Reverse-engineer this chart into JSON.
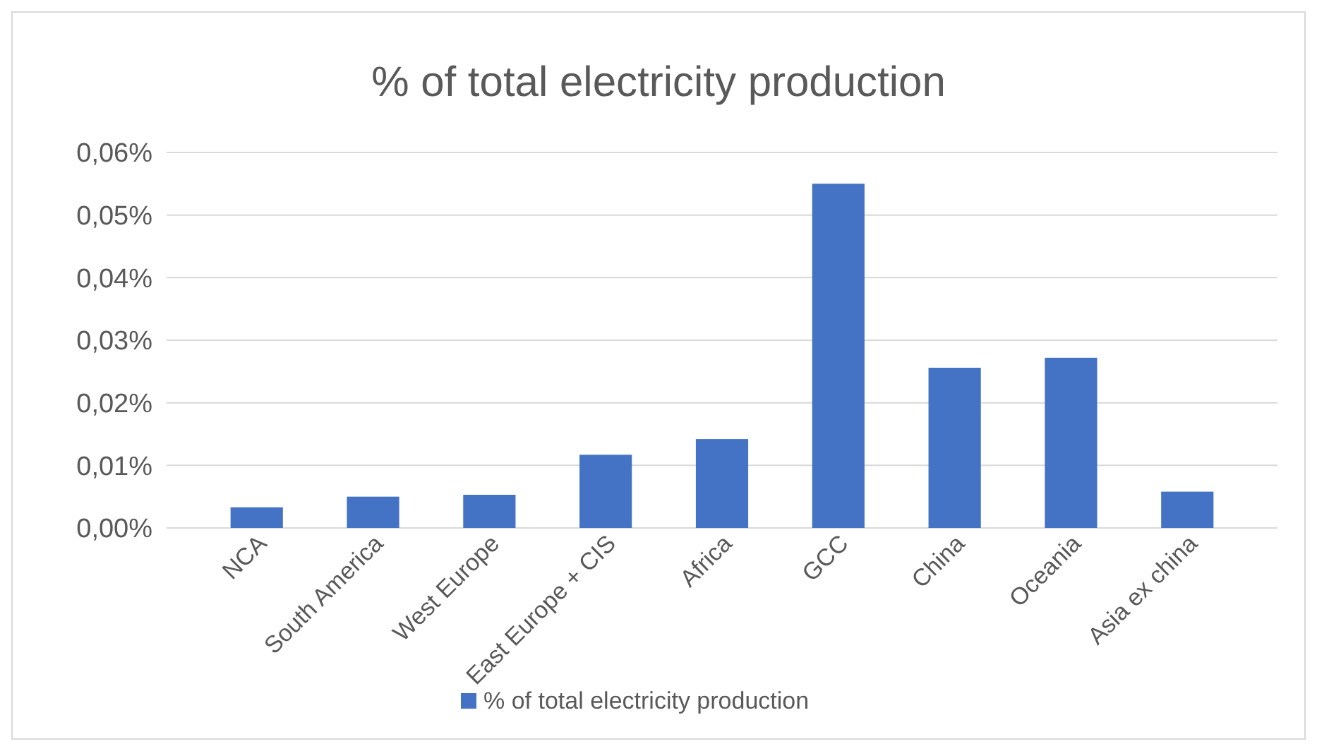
{
  "chart_data": {
    "type": "bar",
    "title": "% of total electricity production",
    "categories": [
      "NCA",
      "South America",
      "West Europe",
      "East Europe + CIS",
      "Africa",
      "GCC",
      "China",
      "Oceania",
      "Asia ex china"
    ],
    "series": [
      {
        "name": "% of total electricity production",
        "color": "#4472c4",
        "values": [
          0.0033,
          0.005,
          0.0053,
          0.0117,
          0.0142,
          0.055,
          0.0256,
          0.0272,
          0.0058
        ]
      }
    ],
    "ylim": [
      0,
      0.06
    ],
    "yticks": [
      {
        "value": 0,
        "label": "0,00%"
      },
      {
        "value": 0.01,
        "label": "0,01%"
      },
      {
        "value": 0.02,
        "label": "0,02%"
      },
      {
        "value": 0.03,
        "label": "0,03%"
      },
      {
        "value": 0.04,
        "label": "0,04%"
      },
      {
        "value": 0.05,
        "label": "0,05%"
      },
      {
        "value": 0.06,
        "label": "0,06%"
      }
    ],
    "grid": "y",
    "legend": "bottom"
  }
}
